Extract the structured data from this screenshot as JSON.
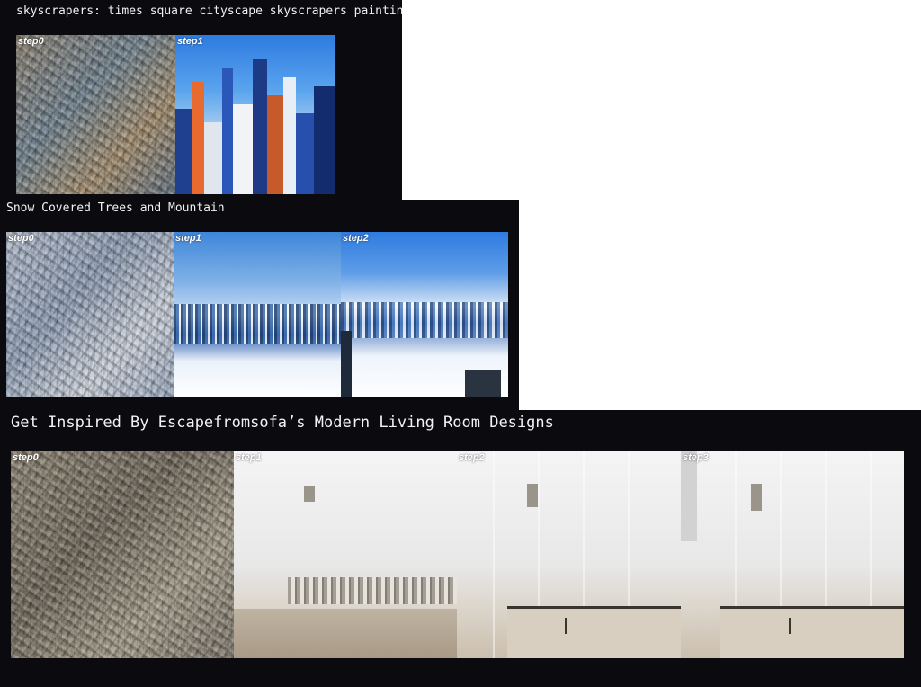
{
  "panels": [
    {
      "caption": "skyscrapers: times square cityscape skyscrapers painting",
      "steps": [
        "step0",
        "step1"
      ]
    },
    {
      "caption": "Snow Covered Trees and Mountain",
      "steps": [
        "step0",
        "step1",
        "step2"
      ]
    },
    {
      "caption": "Get Inspired By Escapefromsofa’s Modern Living Room Designs",
      "steps": [
        "step0",
        "step1",
        "step2",
        "step3"
      ]
    }
  ],
  "colors": {
    "panel_bg": "#0b0b0f",
    "caption_text": "#f2f2f2",
    "page_bg": "#ffffff"
  }
}
